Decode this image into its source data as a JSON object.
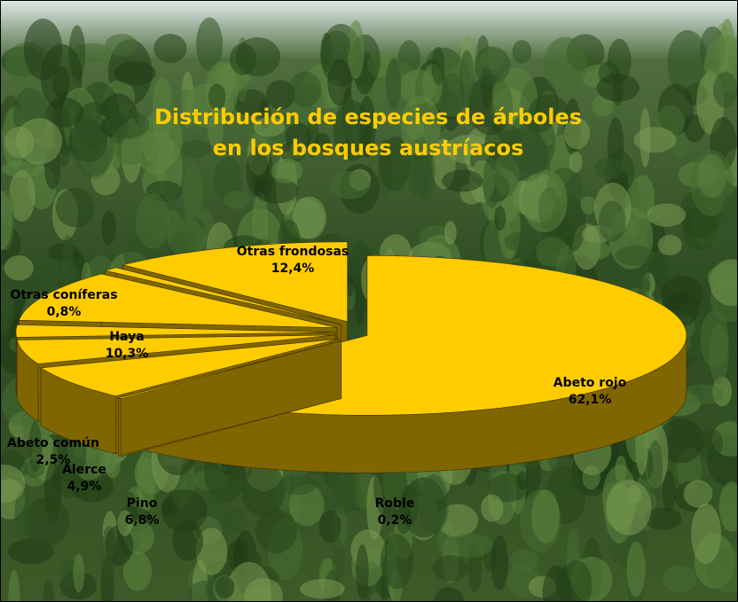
{
  "chart_data": {
    "type": "pie3d",
    "title": [
      "Distribución de especies de árboles",
      "en los bosques austríacos"
    ],
    "categories": [
      "Abeto rojo",
      "Roble",
      "Pino",
      "Alerce",
      "Abeto común",
      "Haya",
      "Otras coníferas",
      "Otras frondosas"
    ],
    "values": [
      62.1,
      0.2,
      6.8,
      4.9,
      2.5,
      10.3,
      0.8,
      12.4
    ],
    "value_labels": [
      "62,1%",
      "0,2%",
      "6,8%",
      "4,9%",
      "2,5%",
      "10,3%",
      "0,8%",
      "12,4%"
    ],
    "color": "#ffcc00",
    "side_color": "#806600",
    "title_color": "#ffcc00"
  }
}
